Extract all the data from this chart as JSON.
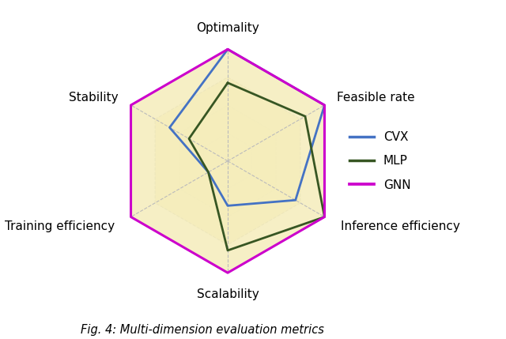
{
  "categories": [
    "Optimality",
    "Feasible rate",
    "Inference efficiency",
    "Scalability",
    "Training efficiency",
    "Stability"
  ],
  "max_value": 5,
  "num_levels": 4,
  "series": [
    {
      "name": "CVX",
      "color": "#4472C4",
      "linewidth": 2.0,
      "values": [
        5.0,
        5.0,
        3.5,
        2.0,
        1.0,
        3.0
      ]
    },
    {
      "name": "MLP",
      "color": "#375623",
      "linewidth": 2.0,
      "values": [
        3.5,
        4.0,
        5.0,
        4.0,
        1.0,
        2.0
      ]
    },
    {
      "name": "GNN",
      "color": "#CC00CC",
      "linewidth": 2.2,
      "values": [
        5.0,
        5.0,
        5.0,
        5.0,
        5.0,
        5.0
      ]
    }
  ],
  "fill_color": "#F5EDBB",
  "fill_alpha": 0.85,
  "grid_color": "#BBBBBB",
  "grid_linestyle": "--",
  "label_fontsize": 11,
  "legend_fontsize": 11,
  "caption": "Fig. 4: Multi-dimension evaluation metrics",
  "caption_fontsize": 10.5
}
